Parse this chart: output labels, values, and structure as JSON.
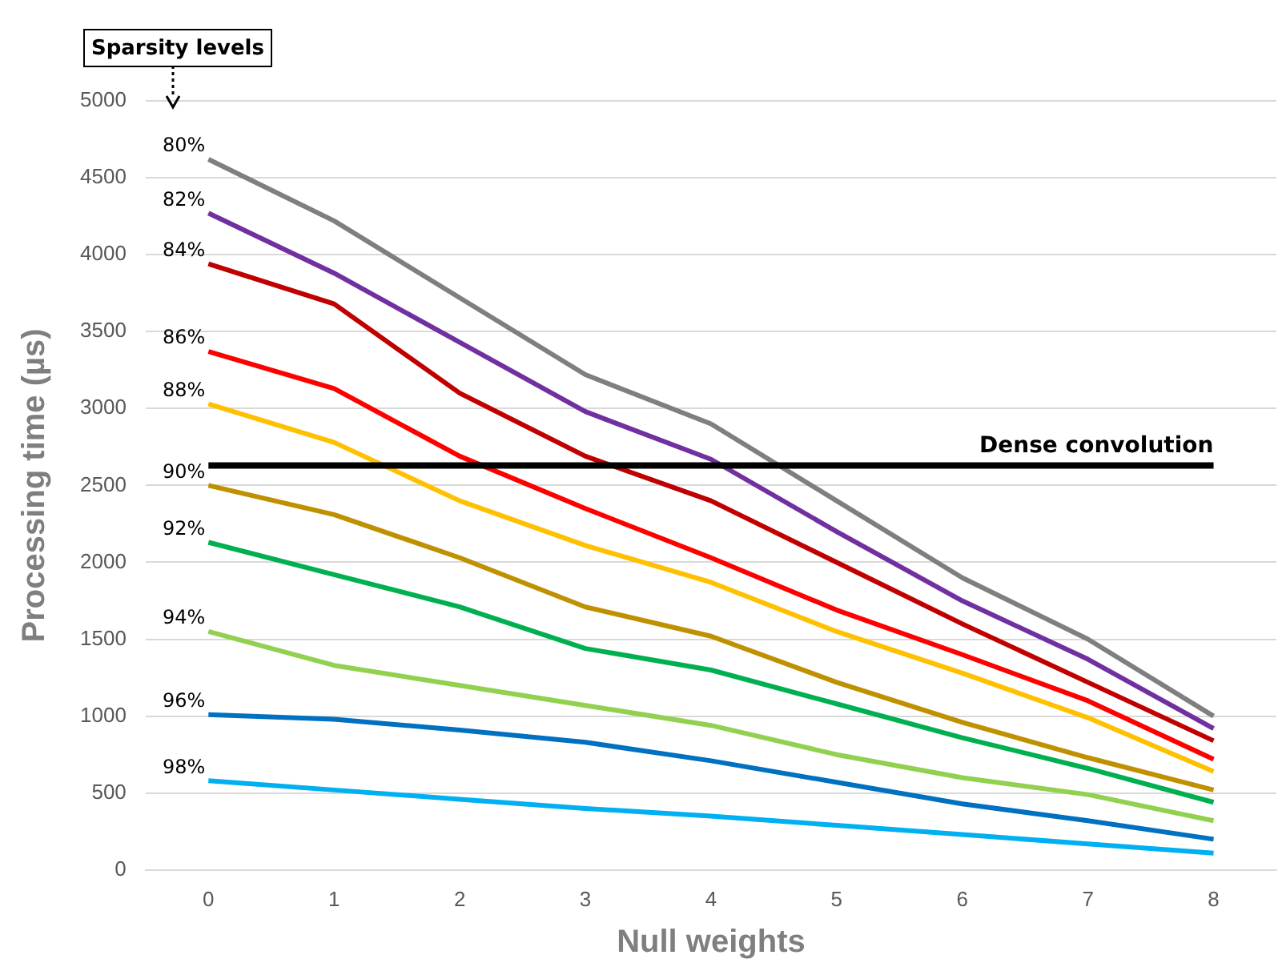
{
  "chart_data": {
    "type": "line",
    "xlabel": "Null weights",
    "ylabel": "Processing time (µs)",
    "categories": [
      "0",
      "1",
      "2",
      "3",
      "4",
      "5",
      "6",
      "7",
      "8"
    ],
    "ylim": [
      0,
      5000
    ],
    "yticks": [
      0,
      500,
      1000,
      1500,
      2000,
      2500,
      3000,
      3500,
      4000,
      4500,
      5000
    ],
    "grid": "y",
    "legend": false,
    "marker": "none",
    "line_style": "solid",
    "series": [
      {
        "name": "80%",
        "color": "#7f7f7f",
        "values": [
          4620,
          4220,
          3720,
          3220,
          2900,
          2400,
          1900,
          1500,
          1000
        ]
      },
      {
        "name": "82%",
        "color": "#7030a0",
        "values": [
          4270,
          3880,
          3430,
          2980,
          2670,
          2200,
          1750,
          1370,
          920
        ]
      },
      {
        "name": "84%",
        "color": "#c00000",
        "values": [
          3940,
          3680,
          3100,
          2690,
          2400,
          2000,
          1600,
          1220,
          840
        ]
      },
      {
        "name": "86%",
        "color": "#ff0000",
        "values": [
          3370,
          3130,
          2690,
          2350,
          2030,
          1690,
          1400,
          1100,
          720
        ]
      },
      {
        "name": "88%",
        "color": "#ffc000",
        "values": [
          3030,
          2780,
          2400,
          2110,
          1870,
          1550,
          1280,
          990,
          640
        ]
      },
      {
        "name": "90%",
        "color": "#bf9000",
        "values": [
          2500,
          2310,
          2030,
          1710,
          1520,
          1220,
          960,
          730,
          520
        ]
      },
      {
        "name": "92%",
        "color": "#00b050",
        "values": [
          2130,
          1920,
          1710,
          1440,
          1300,
          1080,
          860,
          660,
          440
        ]
      },
      {
        "name": "94%",
        "color": "#92d050",
        "values": [
          1550,
          1330,
          1200,
          1070,
          940,
          750,
          600,
          490,
          320
        ]
      },
      {
        "name": "96%",
        "color": "#0070c0",
        "values": [
          1010,
          980,
          910,
          830,
          710,
          570,
          430,
          320,
          200
        ]
      },
      {
        "name": "98%",
        "color": "#00b0f0",
        "values": [
          580,
          520,
          460,
          400,
          350,
          290,
          230,
          170,
          110
        ]
      }
    ],
    "ref_lines": [
      {
        "axis": "y",
        "value": 2630,
        "label": "Dense convolution",
        "color": "#000000",
        "line_style": "solid"
      }
    ],
    "annotations": [
      "Sparsity levels"
    ]
  }
}
